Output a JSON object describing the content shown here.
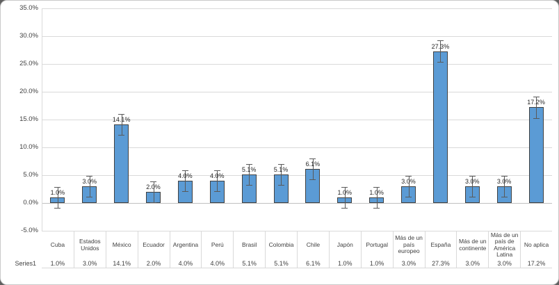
{
  "frame": {
    "card_background": "#ffffff",
    "outer_background": "#5f5f5f"
  },
  "chart_data": {
    "type": "bar",
    "title": "",
    "categories": [
      "Cuba",
      "Estados Unidos",
      "México",
      "Ecuador",
      "Argentina",
      "Perú",
      "Brasil",
      "Colombia",
      "Chile",
      "Japón",
      "Portugal",
      "Más de un país europeo",
      "España",
      "Más de un continente",
      "Más de un país de América Latina",
      "No aplica"
    ],
    "series": [
      {
        "name": "Series1",
        "values": [
          1.0,
          3.0,
          14.1,
          2.0,
          4.0,
          4.0,
          5.1,
          5.1,
          6.1,
          1.0,
          1.0,
          3.0,
          27.3,
          3.0,
          3.0,
          17.2
        ],
        "fill_color": "#5B9BD5",
        "border_color": "#404040"
      }
    ],
    "data_labels": [
      "1.0%",
      "3.0%",
      "14.1%",
      "2.0%",
      "4.0%",
      "4.0%",
      "5.1%",
      "5.1%",
      "6.1%",
      "1.0%",
      "1.0%",
      "3.0%",
      "27.3%",
      "3.0%",
      "3.0%",
      "17.2%"
    ],
    "y_axis": {
      "min": -5,
      "max": 35,
      "step": 5,
      "tick_labels": [
        "35.0%",
        "30.0%",
        "25.0%",
        "20.0%",
        "15.0%",
        "10.0%",
        "5.0%",
        "0.0%",
        "-5.0%"
      ]
    },
    "error_bars": {
      "plus_minus_pct": 1.9,
      "color": "#595959"
    },
    "grid": "horizontal",
    "gridline_color": "#d9d9d9",
    "zero_line_color": "#bfbfbf",
    "legend_position": "none",
    "data_table": {
      "row_label": "Series1",
      "values": [
        "1.0%",
        "3.0%",
        "14.1%",
        "2.0%",
        "4.0%",
        "4.0%",
        "5.1%",
        "5.1%",
        "6.1%",
        "1.0%",
        "1.0%",
        "3.0%",
        "27.3%",
        "3.0%",
        "3.0%",
        "17.2%"
      ]
    }
  }
}
